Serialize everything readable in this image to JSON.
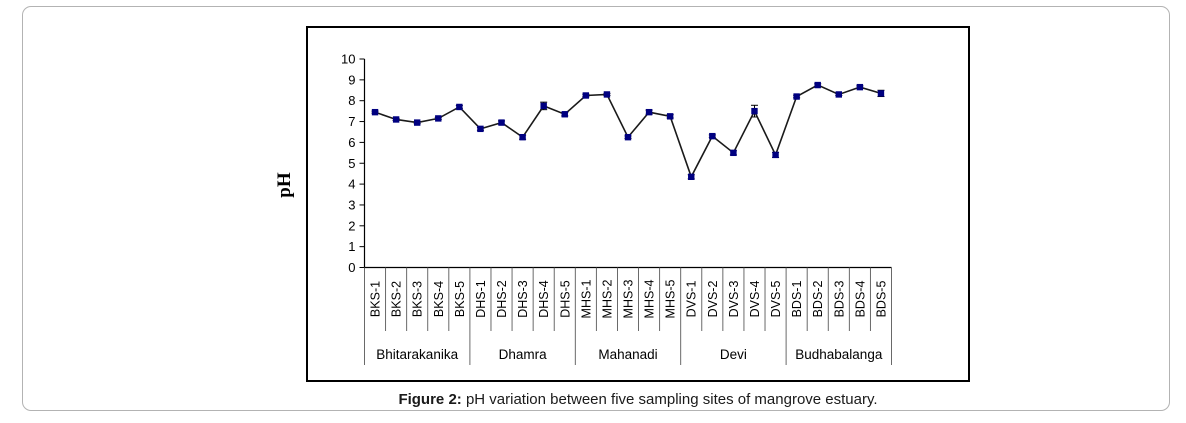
{
  "figure": {
    "caption_label": "Figure 2:",
    "caption_text": "pH variation between five sampling sites of mangrove estuary."
  },
  "chart_data": {
    "type": "line",
    "title": "",
    "xlabel": "",
    "ylabel": "pH",
    "ylim": [
      0,
      10
    ],
    "yticks": [
      0,
      1,
      2,
      3,
      4,
      5,
      6,
      7,
      8,
      9,
      10
    ],
    "grid": false,
    "legend_position": "none",
    "marker": "square",
    "marker_color": "#000080",
    "line_color": "#1a1a1a",
    "error_bar_color": "#000000",
    "axis_color": "#000000",
    "separator_color": "#595959",
    "groups": [
      {
        "label": "Bhitarakanika",
        "categories": [
          "BKS-1",
          "BKS-2",
          "BKS-3",
          "BKS-4",
          "BKS-5"
        ]
      },
      {
        "label": "Dhamra",
        "categories": [
          "DHS-1",
          "DHS-2",
          "DHS-3",
          "DHS-4",
          "DHS-5"
        ]
      },
      {
        "label": "Mahanadi",
        "categories": [
          "MHS-1",
          "MHS-2",
          "MHS-3",
          "MHS-4",
          "MHS-5"
        ]
      },
      {
        "label": "Devi",
        "categories": [
          "DVS-1",
          "DVS-2",
          "DVS-3",
          "DVS-4",
          "DVS-5"
        ]
      },
      {
        "label": "Budhabalanga",
        "categories": [
          "BDS-1",
          "BDS-2",
          "BDS-3",
          "BDS-4",
          "BDS-5"
        ]
      }
    ],
    "series": [
      {
        "name": "pH",
        "values": [
          7.45,
          7.1,
          6.95,
          7.15,
          7.7,
          6.65,
          6.95,
          6.25,
          7.75,
          7.35,
          8.25,
          8.3,
          6.25,
          7.45,
          7.25,
          4.35,
          6.3,
          5.5,
          7.5,
          5.4,
          8.2,
          8.75,
          8.3,
          8.65,
          8.35
        ],
        "errors": [
          0.05,
          0.05,
          0.05,
          0.05,
          0.07,
          0.07,
          0.08,
          0.1,
          0.18,
          0.08,
          0.06,
          0.05,
          0.06,
          0.1,
          0.08,
          0.1,
          0.06,
          0.1,
          0.28,
          0.12,
          0.06,
          0.06,
          0.05,
          0.06,
          0.15
        ]
      }
    ]
  }
}
